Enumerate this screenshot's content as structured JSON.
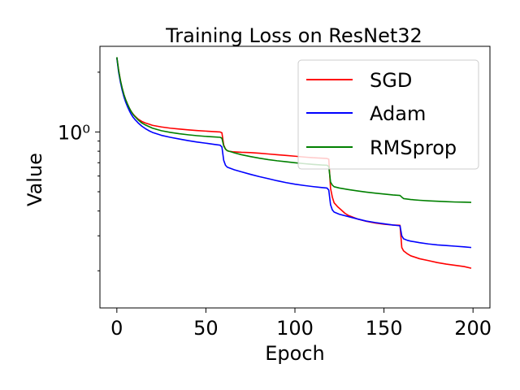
{
  "chart_data": {
    "type": "line",
    "title": "Training Loss on ResNet32",
    "xlabel": "Epoch",
    "ylabel": "Value",
    "xlim": [
      -9.5,
      209.5
    ],
    "ylim": [
      0.13,
      2.7
    ],
    "yscale": "log",
    "xticks": [
      0,
      50,
      100,
      150,
      200
    ],
    "xtick_labels": [
      "0",
      "50",
      "100",
      "150",
      "200"
    ],
    "yticks_major": [
      1.0
    ],
    "ytick_major_labels": [
      "10⁰"
    ],
    "yticks_minor": [
      0.2,
      0.3,
      0.4,
      0.5,
      0.6,
      0.7,
      0.8,
      0.9,
      2.0
    ],
    "legend_position": "upper right",
    "grid": false,
    "series": [
      {
        "name": "SGD",
        "color": "#ff0000",
        "points": [
          [
            0,
            2.37
          ],
          [
            1,
            2.05
          ],
          [
            2,
            1.82
          ],
          [
            3,
            1.66
          ],
          [
            4,
            1.54
          ],
          [
            5,
            1.45
          ],
          [
            6,
            1.38
          ],
          [
            7,
            1.32
          ],
          [
            8,
            1.27
          ],
          [
            9,
            1.235
          ],
          [
            10,
            1.205
          ],
          [
            12,
            1.16
          ],
          [
            14,
            1.13
          ],
          [
            16,
            1.11
          ],
          [
            18,
            1.095
          ],
          [
            20,
            1.08
          ],
          [
            25,
            1.06
          ],
          [
            30,
            1.045
          ],
          [
            35,
            1.035
          ],
          [
            40,
            1.025
          ],
          [
            45,
            1.017
          ],
          [
            50,
            1.01
          ],
          [
            55,
            1.003
          ],
          [
            58,
            1.0
          ],
          [
            59,
            0.99
          ],
          [
            60,
            0.86
          ],
          [
            61,
            0.82
          ],
          [
            62,
            0.805
          ],
          [
            63,
            0.8
          ],
          [
            65,
            0.795
          ],
          [
            70,
            0.79
          ],
          [
            75,
            0.787
          ],
          [
            80,
            0.782
          ],
          [
            85,
            0.775
          ],
          [
            90,
            0.768
          ],
          [
            95,
            0.762
          ],
          [
            100,
            0.755
          ],
          [
            105,
            0.748
          ],
          [
            110,
            0.742
          ],
          [
            115,
            0.738
          ],
          [
            118,
            0.735
          ],
          [
            119,
            0.73
          ],
          [
            120,
            0.52
          ],
          [
            121,
            0.47
          ],
          [
            122,
            0.44
          ],
          [
            124,
            0.42
          ],
          [
            126,
            0.405
          ],
          [
            128,
            0.39
          ],
          [
            130,
            0.38
          ],
          [
            135,
            0.365
          ],
          [
            140,
            0.355
          ],
          [
            145,
            0.348
          ],
          [
            150,
            0.343
          ],
          [
            155,
            0.34
          ],
          [
            159,
            0.339
          ],
          [
            160,
            0.262
          ],
          [
            161,
            0.252
          ],
          [
            163,
            0.244
          ],
          [
            165,
            0.238
          ],
          [
            170,
            0.23
          ],
          [
            175,
            0.225
          ],
          [
            180,
            0.22
          ],
          [
            185,
            0.216
          ],
          [
            190,
            0.213
          ],
          [
            195,
            0.21
          ],
          [
            199,
            0.206
          ]
        ]
      },
      {
        "name": "Adam",
        "color": "#0000ff",
        "points": [
          [
            0,
            2.36
          ],
          [
            1,
            2.0
          ],
          [
            2,
            1.78
          ],
          [
            3,
            1.62
          ],
          [
            4,
            1.5
          ],
          [
            5,
            1.41
          ],
          [
            6,
            1.34
          ],
          [
            7,
            1.28
          ],
          [
            8,
            1.23
          ],
          [
            9,
            1.19
          ],
          [
            10,
            1.16
          ],
          [
            12,
            1.11
          ],
          [
            14,
            1.07
          ],
          [
            16,
            1.04
          ],
          [
            18,
            1.015
          ],
          [
            20,
            0.995
          ],
          [
            25,
            0.962
          ],
          [
            30,
            0.94
          ],
          [
            35,
            0.922
          ],
          [
            40,
            0.905
          ],
          [
            45,
            0.89
          ],
          [
            50,
            0.878
          ],
          [
            55,
            0.865
          ],
          [
            58,
            0.858
          ],
          [
            59,
            0.84
          ],
          [
            60,
            0.72
          ],
          [
            61,
            0.68
          ],
          [
            62,
            0.665
          ],
          [
            64,
            0.655
          ],
          [
            66,
            0.645
          ],
          [
            70,
            0.63
          ],
          [
            75,
            0.612
          ],
          [
            80,
            0.596
          ],
          [
            85,
            0.582
          ],
          [
            90,
            0.568
          ],
          [
            95,
            0.556
          ],
          [
            100,
            0.546
          ],
          [
            105,
            0.538
          ],
          [
            110,
            0.531
          ],
          [
            115,
            0.525
          ],
          [
            118,
            0.522
          ],
          [
            119,
            0.51
          ],
          [
            120,
            0.43
          ],
          [
            121,
            0.405
          ],
          [
            122,
            0.395
          ],
          [
            125,
            0.385
          ],
          [
            130,
            0.375
          ],
          [
            135,
            0.365
          ],
          [
            140,
            0.356
          ],
          [
            145,
            0.35
          ],
          [
            150,
            0.345
          ],
          [
            155,
            0.34
          ],
          [
            159,
            0.337
          ],
          [
            160,
            0.3
          ],
          [
            161,
            0.29
          ],
          [
            163,
            0.285
          ],
          [
            165,
            0.282
          ],
          [
            170,
            0.277
          ],
          [
            175,
            0.273
          ],
          [
            180,
            0.27
          ],
          [
            185,
            0.268
          ],
          [
            190,
            0.266
          ],
          [
            195,
            0.264
          ],
          [
            199,
            0.262
          ]
        ]
      },
      {
        "name": "RMSprop",
        "color": "#008000",
        "points": [
          [
            0,
            2.38
          ],
          [
            1,
            2.04
          ],
          [
            2,
            1.82
          ],
          [
            3,
            1.66
          ],
          [
            4,
            1.54
          ],
          [
            5,
            1.45
          ],
          [
            6,
            1.38
          ],
          [
            7,
            1.32
          ],
          [
            8,
            1.27
          ],
          [
            9,
            1.23
          ],
          [
            10,
            1.2
          ],
          [
            12,
            1.15
          ],
          [
            14,
            1.11
          ],
          [
            16,
            1.085
          ],
          [
            18,
            1.065
          ],
          [
            20,
            1.045
          ],
          [
            25,
            1.015
          ],
          [
            30,
            0.995
          ],
          [
            35,
            0.98
          ],
          [
            40,
            0.968
          ],
          [
            45,
            0.958
          ],
          [
            50,
            0.95
          ],
          [
            55,
            0.944
          ],
          [
            58,
            0.94
          ],
          [
            59,
            0.93
          ],
          [
            60,
            0.85
          ],
          [
            61,
            0.82
          ],
          [
            62,
            0.805
          ],
          [
            64,
            0.795
          ],
          [
            66,
            0.785
          ],
          [
            70,
            0.768
          ],
          [
            75,
            0.752
          ],
          [
            80,
            0.738
          ],
          [
            85,
            0.726
          ],
          [
            90,
            0.716
          ],
          [
            95,
            0.708
          ],
          [
            100,
            0.7
          ],
          [
            105,
            0.693
          ],
          [
            110,
            0.687
          ],
          [
            115,
            0.682
          ],
          [
            118,
            0.68
          ],
          [
            119,
            0.67
          ],
          [
            120,
            0.56
          ],
          [
            121,
            0.54
          ],
          [
            122,
            0.53
          ],
          [
            125,
            0.522
          ],
          [
            130,
            0.513
          ],
          [
            135,
            0.505
          ],
          [
            140,
            0.498
          ],
          [
            145,
            0.492
          ],
          [
            150,
            0.487
          ],
          [
            155,
            0.482
          ],
          [
            159,
            0.479
          ],
          [
            160,
            0.47
          ],
          [
            161,
            0.462
          ],
          [
            165,
            0.457
          ],
          [
            170,
            0.453
          ],
          [
            175,
            0.45
          ],
          [
            180,
            0.448
          ],
          [
            185,
            0.446
          ],
          [
            190,
            0.444
          ],
          [
            195,
            0.443
          ],
          [
            199,
            0.442
          ]
        ]
      }
    ]
  }
}
